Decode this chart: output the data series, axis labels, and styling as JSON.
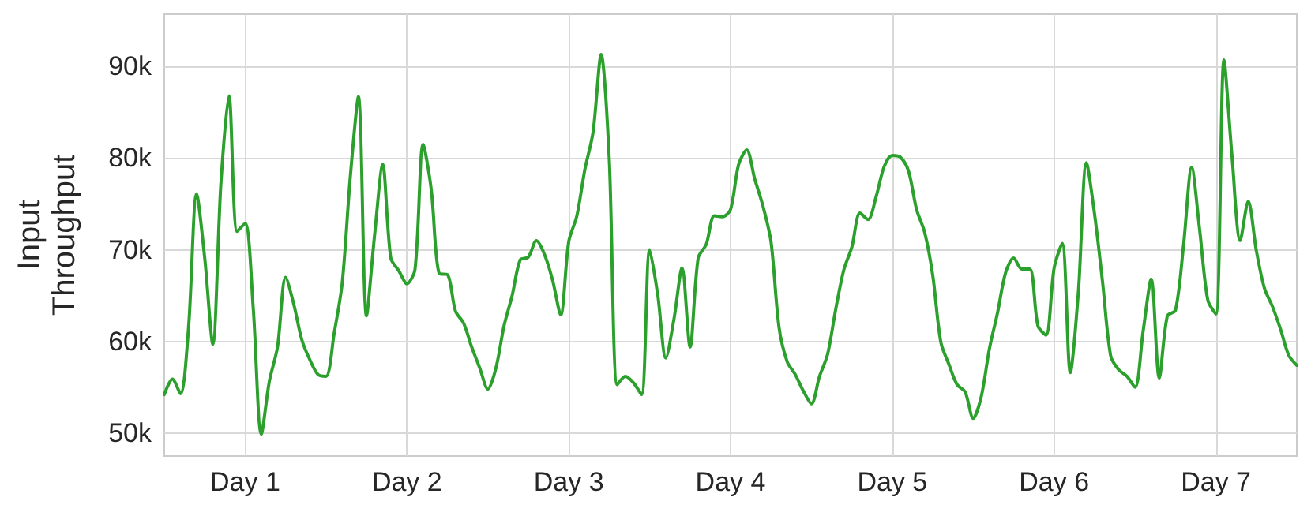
{
  "chart_data": {
    "type": "line",
    "ylabel": "Input\nThroughput",
    "categories": [
      null,
      null,
      null,
      null,
      null,
      null,
      null,
      null,
      null,
      null,
      "Day 1",
      null,
      null,
      null,
      null,
      null,
      null,
      null,
      null,
      null,
      null,
      null,
      null,
      null,
      null,
      null,
      null,
      null,
      null,
      null,
      "Day 2",
      null,
      null,
      null,
      null,
      null,
      null,
      null,
      null,
      null,
      null,
      null,
      null,
      null,
      null,
      null,
      null,
      null,
      null,
      null,
      "Day 3",
      null,
      null,
      null,
      null,
      null,
      null,
      null,
      null,
      null,
      null,
      null,
      null,
      null,
      null,
      null,
      null,
      null,
      null,
      null,
      "Day 4",
      null,
      null,
      null,
      null,
      null,
      null,
      null,
      null,
      null,
      null,
      null,
      null,
      null,
      null,
      null,
      null,
      null,
      null,
      null,
      "Day 5",
      null,
      null,
      null,
      null,
      null,
      null,
      null,
      null,
      null,
      null,
      null,
      null,
      null,
      null,
      null,
      null,
      null,
      null,
      null,
      "Day 6",
      null,
      null,
      null,
      null,
      null,
      null,
      null,
      null,
      null,
      null,
      null,
      null,
      null,
      null,
      null,
      null,
      null,
      null,
      null,
      "Day 7",
      null,
      null,
      null,
      null,
      null,
      null,
      null,
      null,
      null,
      null
    ],
    "series": [
      {
        "color": "#2ca02c",
        "values": [
          54200,
          55900,
          54300,
          61500,
          76100,
          69100,
          59700,
          77200,
          86800,
          72000,
          72900,
          63600,
          49900,
          55700,
          59400,
          67000,
          64100,
          60200,
          58000,
          56400,
          56200,
          60900,
          66400,
          78000,
          86700,
          62800,
          71600,
          79300,
          69100,
          67700,
          66300,
          67900,
          81500,
          76600,
          67400,
          67300,
          63300,
          62000,
          59400,
          57100,
          54800,
          57100,
          61700,
          65000,
          68900,
          69200,
          71000,
          69500,
          66700,
          62900,
          70900,
          73700,
          78800,
          82800,
          91300,
          80000,
          55300,
          56200,
          55500,
          54200,
          70000,
          65100,
          58200,
          62400,
          68000,
          59400,
          69100,
          70600,
          73700,
          73600,
          74400,
          79300,
          80900,
          77700,
          74800,
          70900,
          61500,
          57800,
          56400,
          54600,
          53200,
          56200,
          58600,
          63500,
          67800,
          70300,
          74000,
          73300,
          75800,
          79100,
          80300,
          80100,
          78600,
          74400,
          71900,
          67200,
          59900,
          57500,
          55300,
          54500,
          51600,
          54000,
          59200,
          63100,
          67500,
          69100,
          67900,
          67900,
          61700,
          60700,
          68000,
          70700,
          56600,
          65400,
          79500,
          73900,
          66400,
          58400,
          56900,
          56200,
          55000,
          61100,
          66800,
          56000,
          62800,
          63400,
          70500,
          79000,
          72100,
          64500,
          63000,
          90700,
          80100,
          71000,
          75300,
          69900,
          65800,
          63800,
          61300,
          58500,
          57400
        ]
      }
    ],
    "ylim": [
      47500,
      95700
    ],
    "yticks": [
      {
        "value": 50000,
        "label": "50k"
      },
      {
        "value": 60000,
        "label": "60k"
      },
      {
        "value": 70000,
        "label": "70k"
      },
      {
        "value": 80000,
        "label": "80k"
      },
      {
        "value": 90000,
        "label": "90k"
      }
    ],
    "grid": true,
    "marker": "none",
    "line_style": "solid"
  }
}
